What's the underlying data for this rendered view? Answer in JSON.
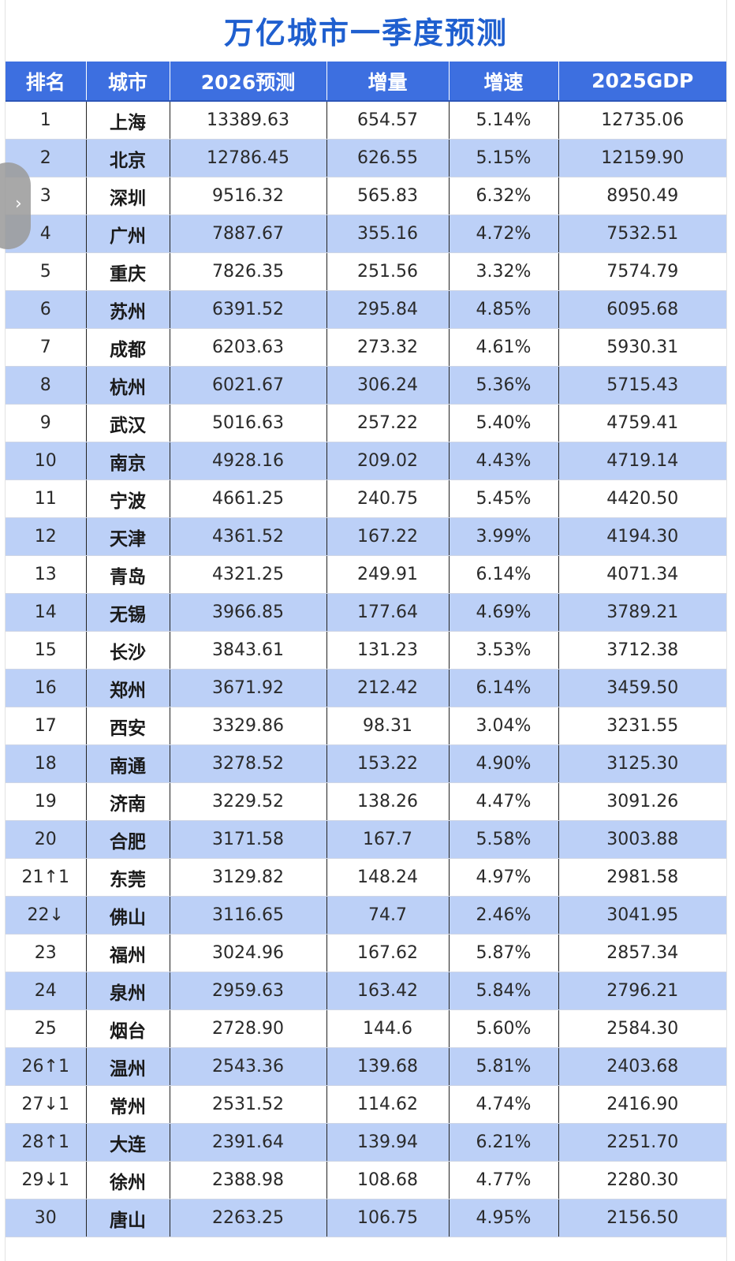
{
  "title": "万亿城市一季度预测",
  "headers": [
    "排名",
    "城市",
    "2026预测",
    "增量",
    "增速",
    "2025GDP"
  ],
  "rows": [
    {
      "rank": "1",
      "city": "上海",
      "forecast": "13389.63",
      "increment": "654.57",
      "growth": "5.14%",
      "gdp2025": "12735.06"
    },
    {
      "rank": "2",
      "city": "北京",
      "forecast": "12786.45",
      "increment": "626.55",
      "growth": "5.15%",
      "gdp2025": "12159.90"
    },
    {
      "rank": "3",
      "city": "深圳",
      "forecast": "9516.32",
      "increment": "565.83",
      "growth": "6.32%",
      "gdp2025": "8950.49"
    },
    {
      "rank": "4",
      "city": "广州",
      "forecast": "7887.67",
      "increment": "355.16",
      "growth": "4.72%",
      "gdp2025": "7532.51"
    },
    {
      "rank": "5",
      "city": "重庆",
      "forecast": "7826.35",
      "increment": "251.56",
      "growth": "3.32%",
      "gdp2025": "7574.79"
    },
    {
      "rank": "6",
      "city": "苏州",
      "forecast": "6391.52",
      "increment": "295.84",
      "growth": "4.85%",
      "gdp2025": "6095.68"
    },
    {
      "rank": "7",
      "city": "成都",
      "forecast": "6203.63",
      "increment": "273.32",
      "growth": "4.61%",
      "gdp2025": "5930.31"
    },
    {
      "rank": "8",
      "city": "杭州",
      "forecast": "6021.67",
      "increment": "306.24",
      "growth": "5.36%",
      "gdp2025": "5715.43"
    },
    {
      "rank": "9",
      "city": "武汉",
      "forecast": "5016.63",
      "increment": "257.22",
      "growth": "5.40%",
      "gdp2025": "4759.41"
    },
    {
      "rank": "10",
      "city": "南京",
      "forecast": "4928.16",
      "increment": "209.02",
      "growth": "4.43%",
      "gdp2025": "4719.14"
    },
    {
      "rank": "11",
      "city": "宁波",
      "forecast": "4661.25",
      "increment": "240.75",
      "growth": "5.45%",
      "gdp2025": "4420.50"
    },
    {
      "rank": "12",
      "city": "天津",
      "forecast": "4361.52",
      "increment": "167.22",
      "growth": "3.99%",
      "gdp2025": "4194.30"
    },
    {
      "rank": "13",
      "city": "青岛",
      "forecast": "4321.25",
      "increment": "249.91",
      "growth": "6.14%",
      "gdp2025": "4071.34"
    },
    {
      "rank": "14",
      "city": "无锡",
      "forecast": "3966.85",
      "increment": "177.64",
      "growth": "4.69%",
      "gdp2025": "3789.21"
    },
    {
      "rank": "15",
      "city": "长沙",
      "forecast": "3843.61",
      "increment": "131.23",
      "growth": "3.53%",
      "gdp2025": "3712.38"
    },
    {
      "rank": "16",
      "city": "郑州",
      "forecast": "3671.92",
      "increment": "212.42",
      "growth": "6.14%",
      "gdp2025": "3459.50"
    },
    {
      "rank": "17",
      "city": "西安",
      "forecast": "3329.86",
      "increment": "98.31",
      "growth": "3.04%",
      "gdp2025": "3231.55"
    },
    {
      "rank": "18",
      "city": "南通",
      "forecast": "3278.52",
      "increment": "153.22",
      "growth": "4.90%",
      "gdp2025": "3125.30"
    },
    {
      "rank": "19",
      "city": "济南",
      "forecast": "3229.52",
      "increment": "138.26",
      "growth": "4.47%",
      "gdp2025": "3091.26"
    },
    {
      "rank": "20",
      "city": "合肥",
      "forecast": "3171.58",
      "increment": "167.7",
      "growth": "5.58%",
      "gdp2025": "3003.88"
    },
    {
      "rank": "21",
      "change": "up",
      "arrow": "↑",
      "change_amount": "1",
      "city": "东莞",
      "forecast": "3129.82",
      "increment": "148.24",
      "growth": "4.97%",
      "gdp2025": "2981.58"
    },
    {
      "rank": "22",
      "change": "down",
      "arrow": "↓",
      "change_amount": "",
      "city": "佛山",
      "forecast": "3116.65",
      "increment": "74.7",
      "growth": "2.46%",
      "gdp2025": "3041.95"
    },
    {
      "rank": "23",
      "city": "福州",
      "forecast": "3024.96",
      "increment": "167.62",
      "growth": "5.87%",
      "gdp2025": "2857.34"
    },
    {
      "rank": "24",
      "city": "泉州",
      "forecast": "2959.63",
      "increment": "163.42",
      "growth": "5.84%",
      "gdp2025": "2796.21"
    },
    {
      "rank": "25",
      "city": "烟台",
      "forecast": "2728.90",
      "increment": "144.6",
      "growth": "5.60%",
      "gdp2025": "2584.30"
    },
    {
      "rank": "26",
      "change": "up",
      "arrow": "↑",
      "change_amount": "1",
      "city": "温州",
      "forecast": "2543.36",
      "increment": "139.68",
      "growth": "5.81%",
      "gdp2025": "2403.68"
    },
    {
      "rank": "27",
      "change": "down",
      "arrow": "↓",
      "change_amount": "1",
      "city": "常州",
      "forecast": "2531.52",
      "increment": "114.62",
      "growth": "4.74%",
      "gdp2025": "2416.90"
    },
    {
      "rank": "28",
      "change": "up",
      "arrow": "↑",
      "change_amount": "1",
      "city": "大连",
      "forecast": "2391.64",
      "increment": "139.94",
      "growth": "6.21%",
      "gdp2025": "2251.70"
    },
    {
      "rank": "29",
      "change": "down",
      "arrow": "↓",
      "change_amount": "1",
      "city": "徐州",
      "forecast": "2388.98",
      "increment": "108.68",
      "growth": "4.77%",
      "gdp2025": "2280.30"
    },
    {
      "rank": "30",
      "city": "唐山",
      "forecast": "2263.25",
      "increment": "106.75",
      "growth": "4.95%",
      "gdp2025": "2156.50"
    }
  ],
  "colors": {
    "title": "#1f5fcf",
    "header_bg": "#3d6fe0",
    "row_alt": "#bcd0f7",
    "rank_up": "#d62b2b",
    "rank_down": "#1b7fb0"
  },
  "side_handle_icon": "chevron-right-icon",
  "side_handle_glyph": "›"
}
